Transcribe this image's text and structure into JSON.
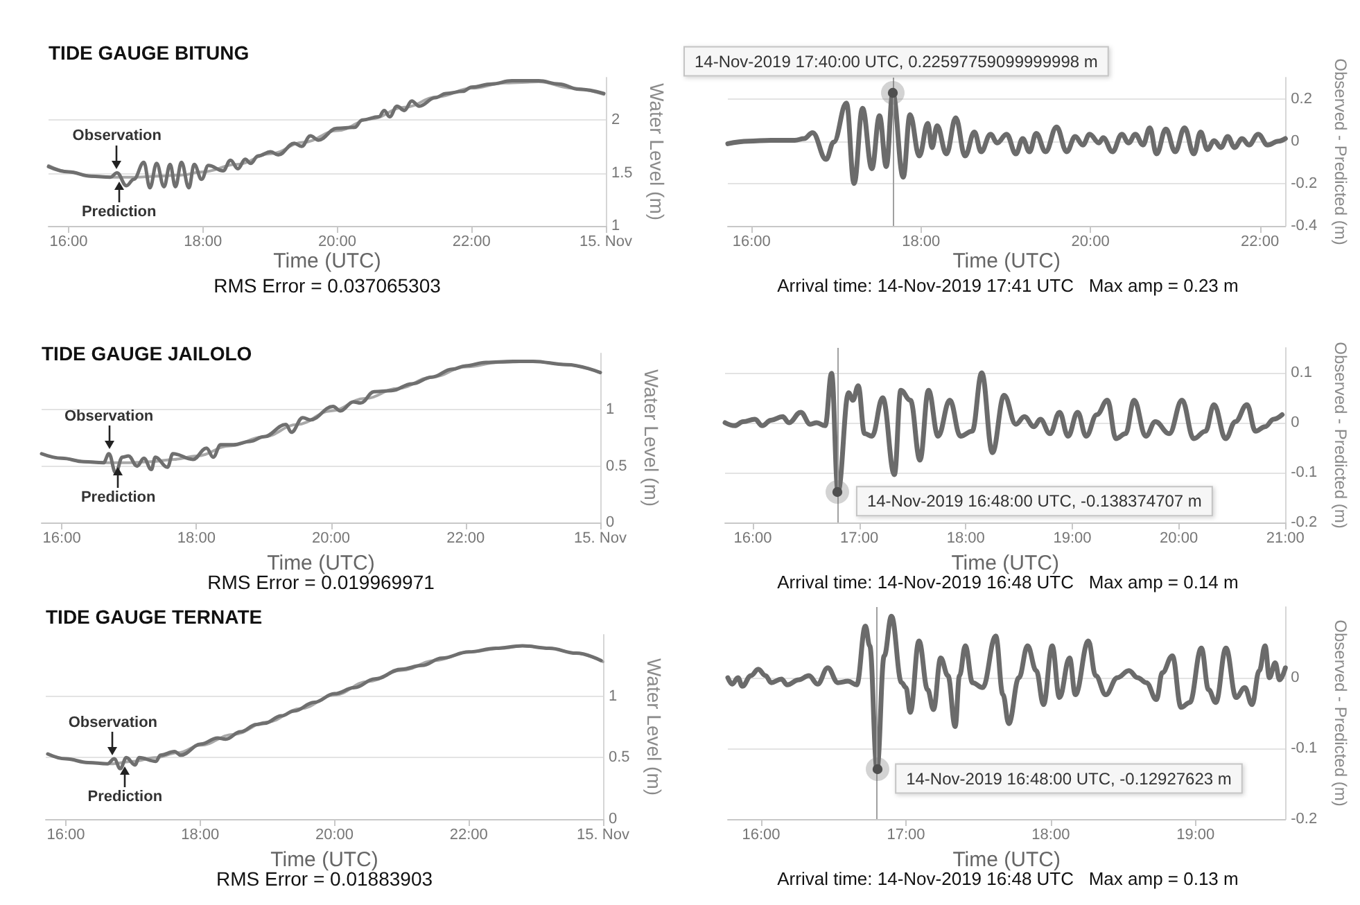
{
  "chart_data": [
    {
      "type": "line",
      "title": "TIDE GAUGE BITUNG",
      "xlabel": "Time (UTC)",
      "ylabel": "Water Level (m)",
      "xlim": [
        15.7,
        24
      ],
      "xticks": [
        {
          "value": 16,
          "label": "16:00"
        },
        {
          "value": 18,
          "label": "18:00"
        },
        {
          "value": 20,
          "label": "20:00"
        },
        {
          "value": 22,
          "label": "22:00"
        },
        {
          "value": 24,
          "label": "15. Nov"
        }
      ],
      "ylim": [
        1,
        2.4
      ],
      "yticks": [
        1,
        1.5,
        2
      ],
      "grid": "y",
      "series": [
        {
          "color": "#a8a8a8",
          "x": [
            15.7,
            16,
            16.33,
            16.67,
            17,
            17.33,
            17.67,
            18,
            18.5,
            19,
            19.5,
            20,
            20.5,
            21,
            21.5,
            22,
            22.5,
            23,
            23.5,
            23.97
          ],
          "values": [
            1.57,
            1.51,
            1.47,
            1.46,
            1.46,
            1.47,
            1.48,
            1.51,
            1.58,
            1.68,
            1.79,
            1.9,
            2.01,
            2.12,
            2.22,
            2.3,
            2.35,
            2.36,
            2.3,
            2.24
          ]
        },
        {
          "color": "#6f6f6f",
          "x": [
            15.7,
            16,
            16.33,
            16.62,
            16.72,
            16.86,
            16.97,
            17.12,
            17.21,
            17.31,
            17.42,
            17.51,
            17.59,
            17.68,
            17.79,
            17.87,
            17.98,
            18.08,
            18.3,
            18.41,
            18.52,
            18.63,
            18.71,
            18.82,
            19.01,
            19.12,
            19.36,
            19.47,
            19.6,
            19.72,
            19.99,
            20.26,
            20.37,
            20.62,
            20.7,
            20.78,
            20.89,
            21,
            21.11,
            21.22,
            21.46,
            21.62,
            21.87,
            22,
            22.3,
            22.6,
            23,
            23.3,
            23.6,
            23.97
          ],
          "values": [
            1.56,
            1.51,
            1.47,
            1.46,
            1.5,
            1.38,
            1.44,
            1.6,
            1.36,
            1.59,
            1.37,
            1.58,
            1.37,
            1.6,
            1.36,
            1.58,
            1.44,
            1.57,
            1.52,
            1.62,
            1.54,
            1.63,
            1.59,
            1.66,
            1.7,
            1.67,
            1.78,
            1.75,
            1.85,
            1.81,
            1.92,
            1.93,
            2,
            2.03,
            2.09,
            2.03,
            2.13,
            2.09,
            2.18,
            2.13,
            2.21,
            2.25,
            2.27,
            2.31,
            2.34,
            2.37,
            2.37,
            2.34,
            2.29,
            2.25
          ]
        }
      ],
      "annotations": [
        "RMS Error = 0.037065303",
        {
          "text": "Observation",
          "x": 16.72,
          "y": 1.5
        },
        {
          "text": "Prediction",
          "x": 16.75,
          "y": 1.46
        }
      ]
    },
    {
      "type": "line",
      "xlabel": "Time (UTC)",
      "ylabel": "Observed - Predicted (m)",
      "xlim": [
        15.72,
        22.3
      ],
      "xticks": [
        {
          "value": 16,
          "label": "16:00"
        },
        {
          "value": 18,
          "label": "18:00"
        },
        {
          "value": 20,
          "label": "20:00"
        },
        {
          "value": 22,
          "label": "22:00"
        }
      ],
      "ylim": [
        -0.4,
        0.3
      ],
      "yticks": [
        -0.4,
        -0.2,
        0,
        0.2
      ],
      "grid": "y",
      "series": [
        {
          "color": "#6b6b6b",
          "x": [
            15.72,
            15.96,
            16.23,
            16.51,
            16.62,
            16.72,
            16.88,
            16.97,
            17.12,
            17.21,
            17.31,
            17.42,
            17.51,
            17.59,
            17.6667,
            17.79,
            17.87,
            17.98,
            18.08,
            18.13,
            18.19,
            18.3,
            18.41,
            18.52,
            18.63,
            18.71,
            18.82,
            18.9,
            19.01,
            19.12,
            19.2,
            19.28,
            19.36,
            19.47,
            19.6,
            19.72,
            19.82,
            19.91,
            19.99,
            20.1,
            20.15,
            20.26,
            20.37,
            20.45,
            20.53,
            20.62,
            20.7,
            20.78,
            20.89,
            21,
            21.11,
            21.22,
            21.3,
            21.38,
            21.46,
            21.54,
            21.62,
            21.7,
            21.79,
            21.87,
            21.98,
            22.09,
            22.22,
            22.3
          ],
          "values": [
            -0.012,
            0,
            0.004,
            0.004,
            0.012,
            0.04,
            -0.086,
            -0.004,
            0.18,
            -0.2,
            0.155,
            -0.13,
            0.12,
            -0.12,
            0.226,
            -0.17,
            0.125,
            -0.07,
            0.084,
            -0.03,
            0.073,
            -0.06,
            0.11,
            -0.07,
            0.043,
            -0.05,
            0.033,
            -0.008,
            0.033,
            -0.06,
            0.012,
            -0.05,
            0.037,
            -0.05,
            0.067,
            -0.05,
            0.022,
            -0.018,
            0.033,
            -0.008,
            0.016,
            -0.05,
            0.033,
            -0.008,
            0.033,
            -0.018,
            0.063,
            -0.06,
            0.057,
            -0.05,
            0.063,
            -0.06,
            0.043,
            -0.04,
            0.002,
            -0.03,
            0.022,
            -0.03,
            0.012,
            -0.018,
            0.033,
            -0.018,
            0,
            0.012
          ]
        }
      ],
      "ref_lines": [
        {
          "axis": "x",
          "value": 17.6667,
          "color": "#a0a0a0"
        }
      ],
      "annotations": [
        "Arrival time: 14-Nov-2019 17:41 UTC   Max amp = 0.23 m",
        {
          "text": "14-Nov-2019 17:40:00 UTC, 0.22597759099999998 m",
          "x": 17.6667,
          "y": 0.226
        }
      ]
    },
    {
      "type": "line",
      "title": "TIDE GAUGE JAILOLO",
      "xlabel": "Time (UTC)",
      "ylabel": "Water Level (m)",
      "xlim": [
        15.7,
        24
      ],
      "xticks": [
        {
          "value": 16,
          "label": "16:00"
        },
        {
          "value": 18,
          "label": "18:00"
        },
        {
          "value": 20,
          "label": "20:00"
        },
        {
          "value": 22,
          "label": "22:00"
        },
        {
          "value": 24,
          "label": "15. Nov"
        }
      ],
      "ylim": [
        0,
        1.5
      ],
      "yticks": [
        0,
        0.5,
        1
      ],
      "grid": "y",
      "series": [
        {
          "color": "#a8a8a8",
          "x": [
            15.7,
            16,
            16.33,
            16.67,
            17,
            17.33,
            17.67,
            18,
            18.5,
            19,
            19.5,
            20,
            20.5,
            21,
            21.5,
            22,
            22.5,
            23,
            23.5,
            24
          ],
          "values": [
            0.61,
            0.57,
            0.54,
            0.53,
            0.53,
            0.54,
            0.56,
            0.59,
            0.68,
            0.76,
            0.87,
            0.99,
            1.1,
            1.19,
            1.29,
            1.38,
            1.42,
            1.43,
            1.4,
            1.33
          ]
        },
        {
          "color": "#6f6f6f",
          "x": [
            15.7,
            16,
            16.33,
            16.62,
            16.7,
            16.8,
            16.9,
            16.99,
            17.12,
            17.22,
            17.33,
            17.39,
            17.57,
            17.65,
            17.95,
            18.15,
            18.25,
            18.36,
            18.55,
            18.8,
            19,
            19.33,
            19.41,
            19.58,
            19.69,
            20.03,
            20.14,
            20.33,
            20.44,
            20.64,
            20.9,
            21.2,
            21.5,
            21.8,
            22,
            22.3,
            22.7,
            23,
            23.5,
            24
          ],
          "values": [
            0.61,
            0.57,
            0.54,
            0.53,
            0.61,
            0.44,
            0.58,
            0.59,
            0.5,
            0.57,
            0.47,
            0.58,
            0.49,
            0.61,
            0.56,
            0.66,
            0.58,
            0.69,
            0.69,
            0.72,
            0.76,
            0.87,
            0.8,
            0.93,
            0.91,
            1.03,
            0.99,
            1.07,
            1.06,
            1.16,
            1.17,
            1.23,
            1.29,
            1.36,
            1.39,
            1.42,
            1.43,
            1.43,
            1.4,
            1.33
          ]
        }
      ],
      "annotations": [
        "RMS Error = 0.019969971",
        {
          "text": "Observation",
          "x": 16.7,
          "y": 0.61
        },
        {
          "text": "Prediction",
          "x": 16.84,
          "y": 0.53
        }
      ]
    },
    {
      "type": "line",
      "xlabel": "Time (UTC)",
      "ylabel": "Observed - Predicted (m)",
      "xlim": [
        15.74,
        21
      ],
      "xticks": [
        {
          "value": 16,
          "label": "16:00"
        },
        {
          "value": 17,
          "label": "17:00"
        },
        {
          "value": 18,
          "label": "18:00"
        },
        {
          "value": 19,
          "label": "19:00"
        },
        {
          "value": 20,
          "label": "20:00"
        },
        {
          "value": 21,
          "label": "21:00"
        }
      ],
      "ylim": [
        -0.2,
        0.15
      ],
      "yticks": [
        -0.2,
        -0.1,
        0,
        0.1
      ],
      "grid": "y",
      "series": [
        {
          "color": "#6b6b6b",
          "x": [
            15.74,
            15.83,
            15.91,
            16.02,
            16.09,
            16.17,
            16.28,
            16.34,
            16.45,
            16.54,
            16.6,
            16.68,
            16.74,
            16.8,
            16.9,
            16.94,
            16.99,
            17.05,
            17.12,
            17.22,
            17.33,
            17.39,
            17.48,
            17.57,
            17.65,
            17.74,
            17.85,
            17.95,
            18.06,
            18.15,
            18.25,
            18.36,
            18.47,
            18.55,
            18.64,
            18.7,
            18.79,
            18.88,
            18.96,
            19.05,
            19.13,
            19.23,
            19.33,
            19.41,
            19.5,
            19.58,
            19.69,
            19.78,
            19.91,
            20.03,
            20.14,
            20.25,
            20.33,
            20.44,
            20.53,
            20.64,
            20.72,
            20.81,
            20.89,
            20.97
          ],
          "values": [
            0,
            -0.006,
            0.002,
            0.007,
            -0.006,
            0.005,
            0.012,
            0,
            0.021,
            -0.003,
            0,
            -0.006,
            0.099,
            -0.138,
            0.06,
            0.045,
            0.074,
            -0.022,
            -0.027,
            0.05,
            -0.104,
            0.065,
            0.045,
            -0.075,
            0.065,
            -0.027,
            0.045,
            -0.027,
            -0.017,
            0.1,
            -0.06,
            0.055,
            -0.003,
            0.012,
            -0.008,
            0.007,
            -0.022,
            0.021,
            -0.027,
            0.021,
            -0.027,
            0.016,
            0.045,
            -0.032,
            -0.022,
            0.045,
            -0.027,
            0.002,
            -0.022,
            0.045,
            -0.032,
            -0.017,
            0.036,
            -0.032,
            0.002,
            0.036,
            -0.017,
            -0.008,
            0.007,
            0.016
          ]
        }
      ],
      "ref_lines": [
        {
          "axis": "x",
          "value": 16.8,
          "color": "#a0a0a0"
        }
      ],
      "annotations": [
        "Arrival time: 14-Nov-2019 16:48 UTC   Max amp = 0.14 m",
        {
          "text": "14-Nov-2019 16:48:00 UTC, -0.138374707 m",
          "x": 16.8,
          "y": -0.138
        }
      ]
    },
    {
      "type": "line",
      "title": "TIDE GAUGE TERNATE",
      "xlabel": "Time (UTC)",
      "ylabel": "Water Level (m)",
      "xlim": [
        15.7,
        24
      ],
      "xticks": [
        {
          "value": 16,
          "label": "16:00"
        },
        {
          "value": 18,
          "label": "18:00"
        },
        {
          "value": 20,
          "label": "20:00"
        },
        {
          "value": 22,
          "label": "22:00"
        },
        {
          "value": 24,
          "label": "15. Nov"
        }
      ],
      "ylim": [
        0,
        1.5
      ],
      "yticks": [
        0,
        0.5,
        1
      ],
      "grid": "y",
      "series": [
        {
          "color": "#a8a8a8",
          "x": [
            15.73,
            16,
            16.33,
            16.67,
            17,
            17.33,
            17.67,
            18,
            18.5,
            19,
            19.5,
            20,
            20.5,
            21,
            21.5,
            22,
            22.5,
            22.8,
            23.2,
            23.6,
            24
          ],
          "values": [
            0.53,
            0.49,
            0.46,
            0.45,
            0.47,
            0.5,
            0.54,
            0.6,
            0.69,
            0.79,
            0.9,
            1.01,
            1.12,
            1.21,
            1.29,
            1.36,
            1.39,
            1.41,
            1.39,
            1.35,
            1.28
          ]
        },
        {
          "color": "#6f6f6f",
          "x": [
            15.73,
            16,
            16.33,
            16.62,
            16.72,
            16.81,
            16.9,
            17.03,
            17.09,
            17.34,
            17.41,
            17.62,
            17.71,
            18.01,
            18.26,
            18.38,
            18.6,
            18.84,
            18.96,
            19.21,
            19.4,
            19.7,
            20,
            20.3,
            20.6,
            21,
            21.3,
            21.6,
            22,
            22.4,
            22.8,
            23.2,
            23.6,
            23.97
          ],
          "values": [
            0.53,
            0.49,
            0.46,
            0.45,
            0.49,
            0.41,
            0.5,
            0.44,
            0.5,
            0.47,
            0.52,
            0.55,
            0.52,
            0.61,
            0.66,
            0.65,
            0.71,
            0.77,
            0.78,
            0.84,
            0.88,
            0.95,
            1.02,
            1.07,
            1.14,
            1.22,
            1.25,
            1.31,
            1.36,
            1.39,
            1.41,
            1.39,
            1.35,
            1.29
          ]
        }
      ],
      "annotations": [
        "RMS Error = 0.01883903",
        {
          "text": "Observation",
          "x": 16.7,
          "y": 0.48
        },
        {
          "text": "Prediction",
          "x": 16.88,
          "y": 0.46
        }
      ]
    },
    {
      "type": "line",
      "xlabel": "Time (UTC)",
      "ylabel": "Observed - Predicted (m)",
      "xlim": [
        15.77,
        19.62
      ],
      "xticks": [
        {
          "value": 16,
          "label": "16:00"
        },
        {
          "value": 17,
          "label": "17:00"
        },
        {
          "value": 18,
          "label": "18:00"
        },
        {
          "value": 19,
          "label": "19:00"
        }
      ],
      "ylim": [
        -0.2,
        0.1
      ],
      "yticks": [
        -0.2,
        -0.1,
        0
      ],
      "grid": "y",
      "series": [
        {
          "color": "#6b6b6b",
          "x": [
            15.77,
            15.8,
            15.84,
            15.87,
            15.93,
            15.98,
            16.03,
            16.07,
            16.14,
            16.18,
            16.26,
            16.33,
            16.39,
            16.46,
            16.53,
            16.6,
            16.66,
            16.72,
            16.75,
            16.8,
            16.85,
            16.9,
            16.97,
            17,
            17.03,
            17.09,
            17.15,
            17.19,
            17.24,
            17.29,
            17.34,
            17.37,
            17.41,
            17.46,
            17.53,
            17.62,
            17.67,
            17.71,
            17.78,
            17.84,
            17.9,
            17.95,
            18.01,
            18.06,
            18.13,
            18.17,
            18.26,
            18.31,
            18.38,
            18.46,
            18.54,
            18.6,
            18.66,
            18.73,
            18.77,
            18.84,
            18.9,
            18.96,
            19.04,
            19.09,
            19.14,
            19.21,
            19.28,
            19.34,
            19.39,
            19.44,
            19.48,
            19.51,
            19.55,
            19.58,
            19.62
          ],
          "values": [
            0,
            -0.009,
            0,
            -0.012,
            0.003,
            0.012,
            0.003,
            -0.007,
            -0.002,
            -0.01,
            -0.003,
            0.003,
            -0.009,
            0.014,
            -0.007,
            -0.005,
            -0.01,
            0.073,
            0.045,
            -0.129,
            0.031,
            0.087,
            -0.007,
            -0.014,
            -0.049,
            0.052,
            -0.017,
            -0.045,
            0.028,
            0.003,
            -0.069,
            0.003,
            0.045,
            -0.007,
            -0.014,
            0.059,
            -0.024,
            -0.065,
            0,
            0.045,
            0.01,
            -0.038,
            0.045,
            -0.028,
            0.028,
            -0.024,
            0.052,
            0.003,
            -0.024,
            0,
            0.01,
            0,
            -0.007,
            -0.031,
            0.007,
            0.031,
            -0.042,
            -0.035,
            0.042,
            -0.017,
            -0.035,
            0.042,
            -0.028,
            -0.014,
            -0.038,
            0.01,
            0.045,
            0,
            0.021,
            -0.003,
            0.014
          ]
        }
      ],
      "ref_lines": [
        {
          "axis": "x",
          "value": 16.8,
          "color": "#a0a0a0"
        }
      ],
      "annotations": [
        "Arrival time: 14-Nov-2019 16:48 UTC   Max amp = 0.13 m",
        {
          "text": "14-Nov-2019 16:48:00 UTC, -0.12927623 m",
          "x": 16.8,
          "y": -0.129
        }
      ]
    }
  ]
}
